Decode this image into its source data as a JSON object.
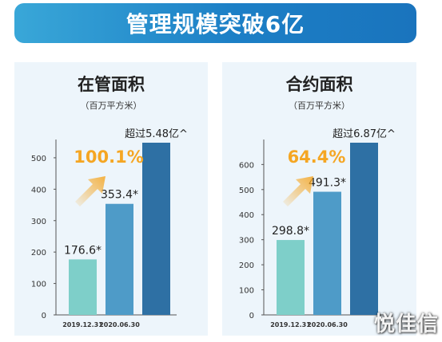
{
  "banner": {
    "title": "管理规模突破6亿"
  },
  "watermark": "悦佳信",
  "chart_data": [
    {
      "type": "bar",
      "title": "在管面积",
      "unit": "（百万平方米）",
      "categories": [
        "2019.12.31",
        "2020.06.30",
        ""
      ],
      "values": [
        176.6,
        353.4,
        548
      ],
      "data_labels": [
        "176.6*",
        "353.4*",
        "超过5.48亿^"
      ],
      "bar_colors": [
        "#7ecfc9",
        "#4e9bc8",
        "#2e70a4"
      ],
      "yticks": [
        0,
        100,
        200,
        300,
        400,
        500
      ],
      "ylim": [
        0,
        548
      ],
      "growth_label": "100.1%",
      "growth_color": "#f5a623"
    },
    {
      "type": "bar",
      "title": "合约面积",
      "unit": "（百万平方米）",
      "categories": [
        "2019.12.31",
        "2020.06.30",
        ""
      ],
      "values": [
        298.8,
        491.3,
        687
      ],
      "data_labels": [
        "298.8*",
        "491.3*",
        "超过6.87亿^"
      ],
      "bar_colors": [
        "#7ecfc9",
        "#4e9bc8",
        "#2e70a4"
      ],
      "yticks": [
        0,
        100,
        200,
        300,
        400,
        500,
        600
      ],
      "ylim": [
        0,
        687
      ],
      "growth_label": "64.4%",
      "growth_color": "#f5a623"
    }
  ]
}
